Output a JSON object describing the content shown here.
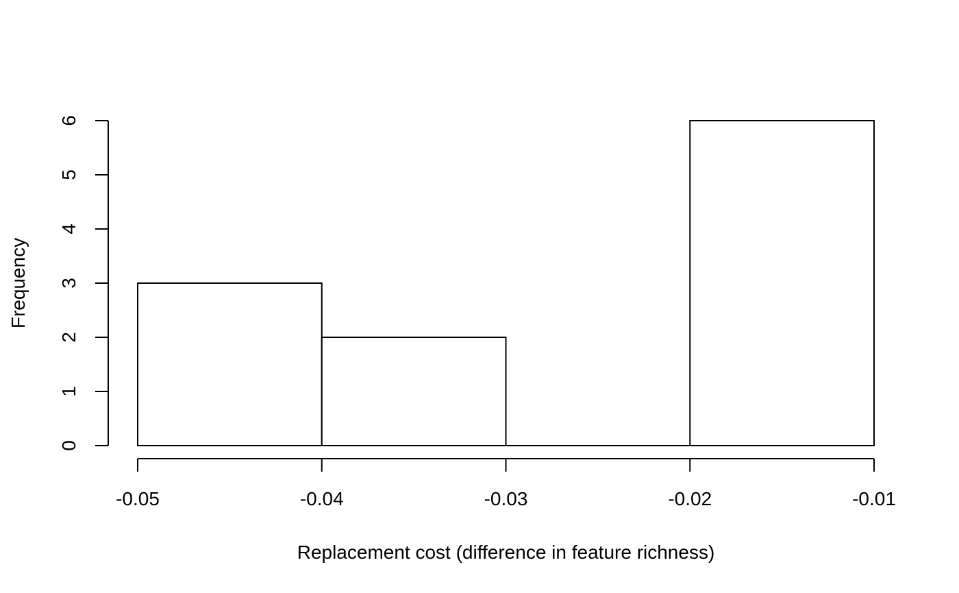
{
  "chart_data": {
    "type": "bar",
    "subtype": "histogram",
    "title": "",
    "xlabel": "Replacement cost (difference in feature richness)",
    "ylabel": "Frequency",
    "bins": [
      {
        "start": -0.05,
        "end": -0.04,
        "count": 3
      },
      {
        "start": -0.04,
        "end": -0.03,
        "count": 2
      },
      {
        "start": -0.03,
        "end": -0.02,
        "count": 0
      },
      {
        "start": -0.02,
        "end": -0.01,
        "count": 6
      }
    ],
    "x_ticks": [
      -0.05,
      -0.04,
      -0.03,
      -0.02,
      -0.01
    ],
    "x_tick_labels": [
      "-0.05",
      "-0.04",
      "-0.03",
      "-0.02",
      "-0.01"
    ],
    "y_ticks": [
      0,
      1,
      2,
      3,
      4,
      5,
      6
    ],
    "y_tick_labels": [
      "0",
      "1",
      "2",
      "3",
      "4",
      "5",
      "6"
    ],
    "xlim": [
      -0.05,
      -0.01
    ],
    "ylim": [
      0,
      6
    ],
    "grid": false,
    "bar_fill": "#ffffff",
    "bar_stroke": "#000000"
  }
}
